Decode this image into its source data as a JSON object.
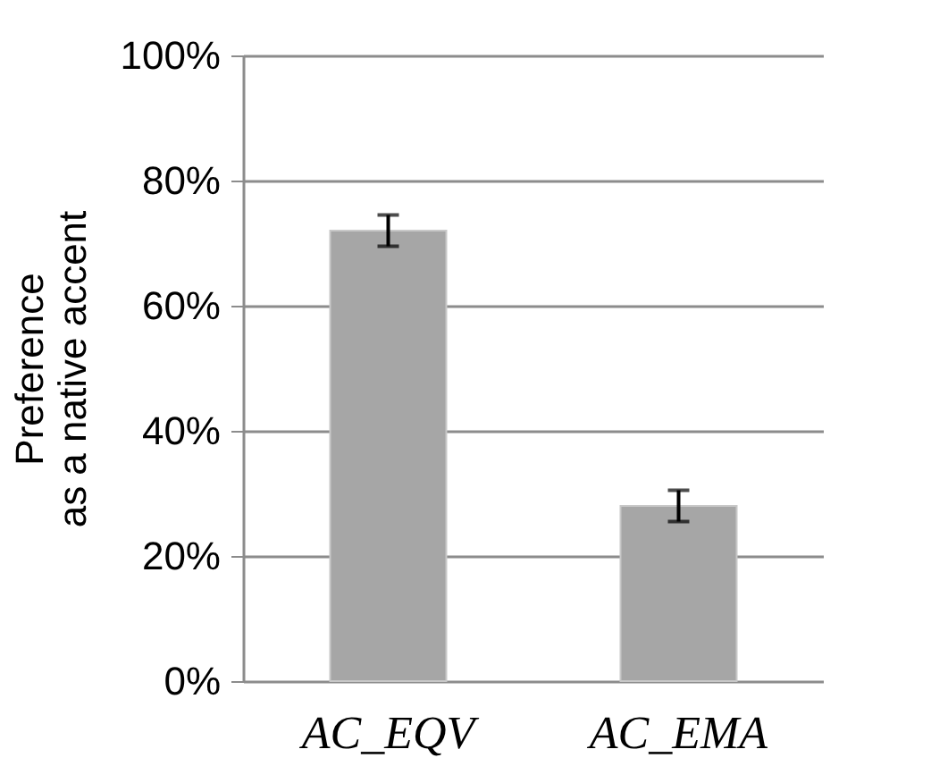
{
  "chart_data": {
    "type": "bar",
    "ylabel": "Preference\nas a native accent",
    "categories": [
      "AC_EQV",
      "AC_EMA"
    ],
    "values": [
      72,
      28
    ],
    "errors": [
      2.5,
      2.5
    ],
    "color": "#a6a6a6",
    "ylim": [
      0,
      100
    ],
    "yticks": [
      {
        "value": 0,
        "label": "0%"
      },
      {
        "value": 20,
        "label": "20%"
      },
      {
        "value": 40,
        "label": "40%"
      },
      {
        "value": 60,
        "label": "60%"
      },
      {
        "value": 80,
        "label": "80%"
      },
      {
        "value": 100,
        "label": "100%"
      }
    ],
    "grid": "y"
  }
}
